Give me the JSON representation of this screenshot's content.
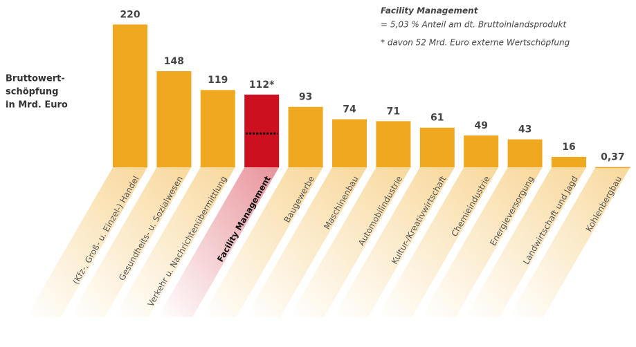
{
  "chart_data": {
    "type": "bar",
    "y_label": [
      "Bruttowert-",
      "schöpfung",
      "in Mrd. Euro"
    ],
    "annotations": [
      "Facility Management",
      "= 5,03 % Anteil am dt. Bruttoinlandsprodukt",
      "* davon 52 Mrd. Euro externe Wertschöpfung"
    ],
    "categories": [
      "(Kfz-, Groß- u. Einzel-) Handel",
      "Gesundheits- u. Sozialwesen",
      "Verkehr u. Nachrichtenübermittlung",
      "Facility Management",
      "Baugewerbe",
      "Maschinenbau",
      "Automobilindustrie",
      "Kultur-/Kreativwirtschaft",
      "Chemieindustrie",
      "Energieversorgung",
      "Landwirtschaft und Jagd",
      "Kohlenbergbau"
    ],
    "values": [
      220,
      148,
      119,
      112,
      93,
      74,
      71,
      61,
      49,
      43,
      16,
      0.37
    ],
    "value_labels": [
      "220",
      "148",
      "119",
      "112*",
      "93",
      "74",
      "71",
      "61",
      "49",
      "43",
      "16",
      "0,37"
    ],
    "colors": [
      "#f0a820",
      "#f0a820",
      "#f0a820",
      "#cc1020",
      "#f0a820",
      "#f0a820",
      "#f0a820",
      "#f0a820",
      "#f0a820",
      "#f0a820",
      "#f0a820",
      "#f0a820"
    ],
    "external_value": 52,
    "ylim": [
      0,
      230
    ]
  }
}
